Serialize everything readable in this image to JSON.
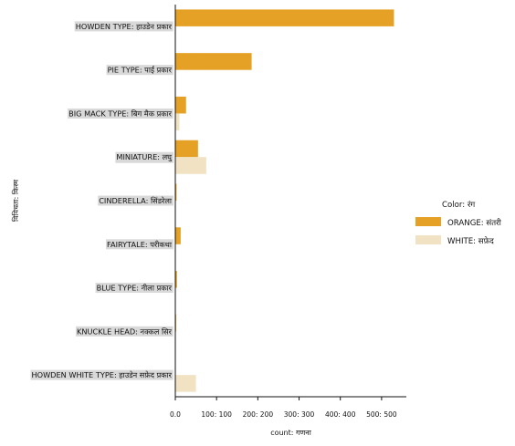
{
  "chart_data": {
    "type": "bar",
    "orientation": "horizontal",
    "categories": [
      "HOWDEN TYPE: हाउडेन प्रकार",
      "PIE TYPE: पाई प्रकार",
      "BIG MACK TYPE: बिग मैक प्रकार",
      "MINIATURE: लघु",
      "CINDERELLA: सिंडरेला",
      "FAIRYTALE: परीकथा",
      "BLUE TYPE: नीला प्रकार",
      "KNUCKLE HEAD: नक्कल सिर",
      "HOWDEN WHITE TYPE: हाउडेन सफ़ेद प्रकार"
    ],
    "series": [
      {
        "name": "ORANGE: संतरी",
        "color": "#E5A125",
        "values": [
          530,
          185,
          26,
          55,
          3,
          13,
          4,
          2,
          0
        ]
      },
      {
        "name": "WHITE: सफ़ेद",
        "color": "#F1E2C3",
        "values": [
          0,
          0,
          10,
          75,
          1,
          0,
          0,
          0,
          50
        ]
      }
    ],
    "xlabel": "count: गणना",
    "ylabel": "विविधता: किस्म",
    "xlim": [
      0,
      560
    ],
    "xticks": [
      0,
      100,
      200,
      300,
      400,
      500
    ],
    "xtick_labels": [
      "0.0",
      "100: 100",
      "200: 200",
      "300: 300",
      "400: 400",
      "500: 500"
    ],
    "legend": {
      "title": "Color: रंग",
      "position": "right"
    },
    "grid": false
  }
}
